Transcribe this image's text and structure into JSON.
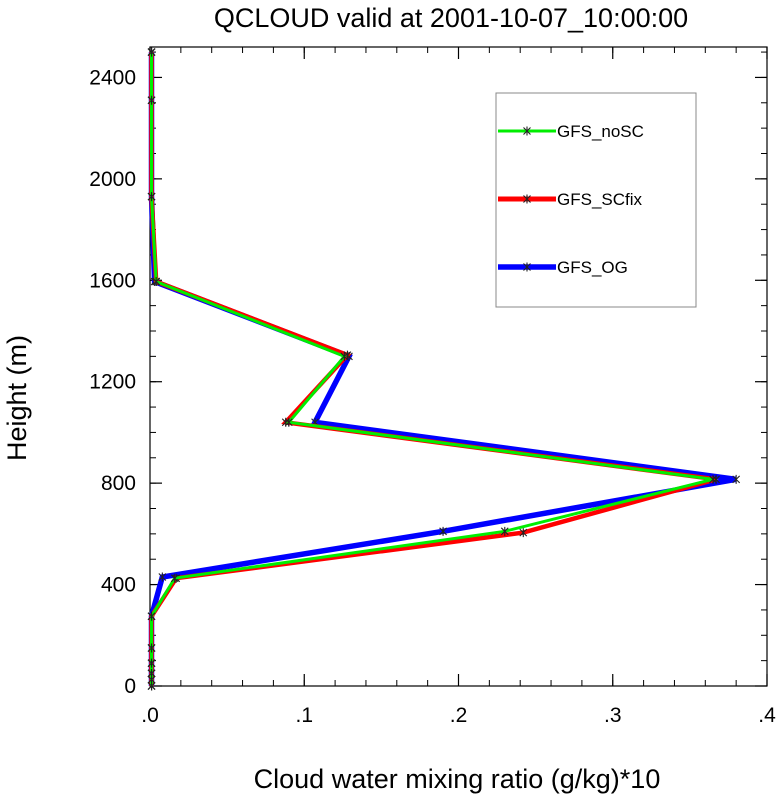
{
  "chart_data": {
    "type": "line",
    "title": "QCLOUD valid at 2001-10-07_10:00:00",
    "xlabel": "Cloud water mixing ratio (g/kg)*10",
    "ylabel": "Height (m)",
    "xlim": [
      0,
      0.4
    ],
    "ylim": [
      0,
      2520
    ],
    "x_ticks": [
      ".0",
      ".1",
      ".2",
      ".3",
      ".4"
    ],
    "x_tick_values": [
      0,
      0.1,
      0.2,
      0.3,
      0.4
    ],
    "y_ticks": [
      "0",
      "400",
      "800",
      "1200",
      "1600",
      "2000",
      "2400"
    ],
    "y_tick_values": [
      0,
      400,
      800,
      1200,
      1600,
      2000,
      2400
    ],
    "legend_position": "top-right",
    "series": [
      {
        "name": "GFS_OG",
        "color": "#0000ff",
        "points": [
          [
            0.001,
            0
          ],
          [
            0.001,
            25
          ],
          [
            0.001,
            50
          ],
          [
            0.001,
            90
          ],
          [
            0.001,
            150
          ],
          [
            0.001,
            275
          ],
          [
            0.008,
            430
          ],
          [
            0.19,
            610
          ],
          [
            0.38,
            815
          ],
          [
            0.107,
            1040
          ],
          [
            0.129,
            1300
          ],
          [
            0.003,
            1595
          ],
          [
            0.001,
            1930
          ],
          [
            0.001,
            2310
          ],
          [
            0.001,
            2500
          ]
        ]
      },
      {
        "name": "GFS_SCfix",
        "color": "#ff0000",
        "points": [
          [
            0.001,
            0
          ],
          [
            0.001,
            25
          ],
          [
            0.001,
            50
          ],
          [
            0.001,
            90
          ],
          [
            0.001,
            150
          ],
          [
            0.001,
            275
          ],
          [
            0.017,
            425
          ],
          [
            0.242,
            605
          ],
          [
            0.367,
            815
          ],
          [
            0.088,
            1040
          ],
          [
            0.128,
            1305
          ],
          [
            0.004,
            1595
          ],
          [
            0.001,
            1930
          ],
          [
            0.001,
            2310
          ],
          [
            0.001,
            2500
          ]
        ]
      },
      {
        "name": "GFS_noSC",
        "color": "#00ee00",
        "points": [
          [
            0.001,
            0
          ],
          [
            0.001,
            25
          ],
          [
            0.001,
            50
          ],
          [
            0.001,
            90
          ],
          [
            0.001,
            150
          ],
          [
            0.001,
            275
          ],
          [
            0.016,
            425
          ],
          [
            0.23,
            610
          ],
          [
            0.365,
            815
          ],
          [
            0.09,
            1040
          ],
          [
            0.126,
            1300
          ],
          [
            0.004,
            1595
          ],
          [
            0.001,
            1930
          ],
          [
            0.001,
            2310
          ],
          [
            0.001,
            2500
          ]
        ]
      }
    ]
  }
}
